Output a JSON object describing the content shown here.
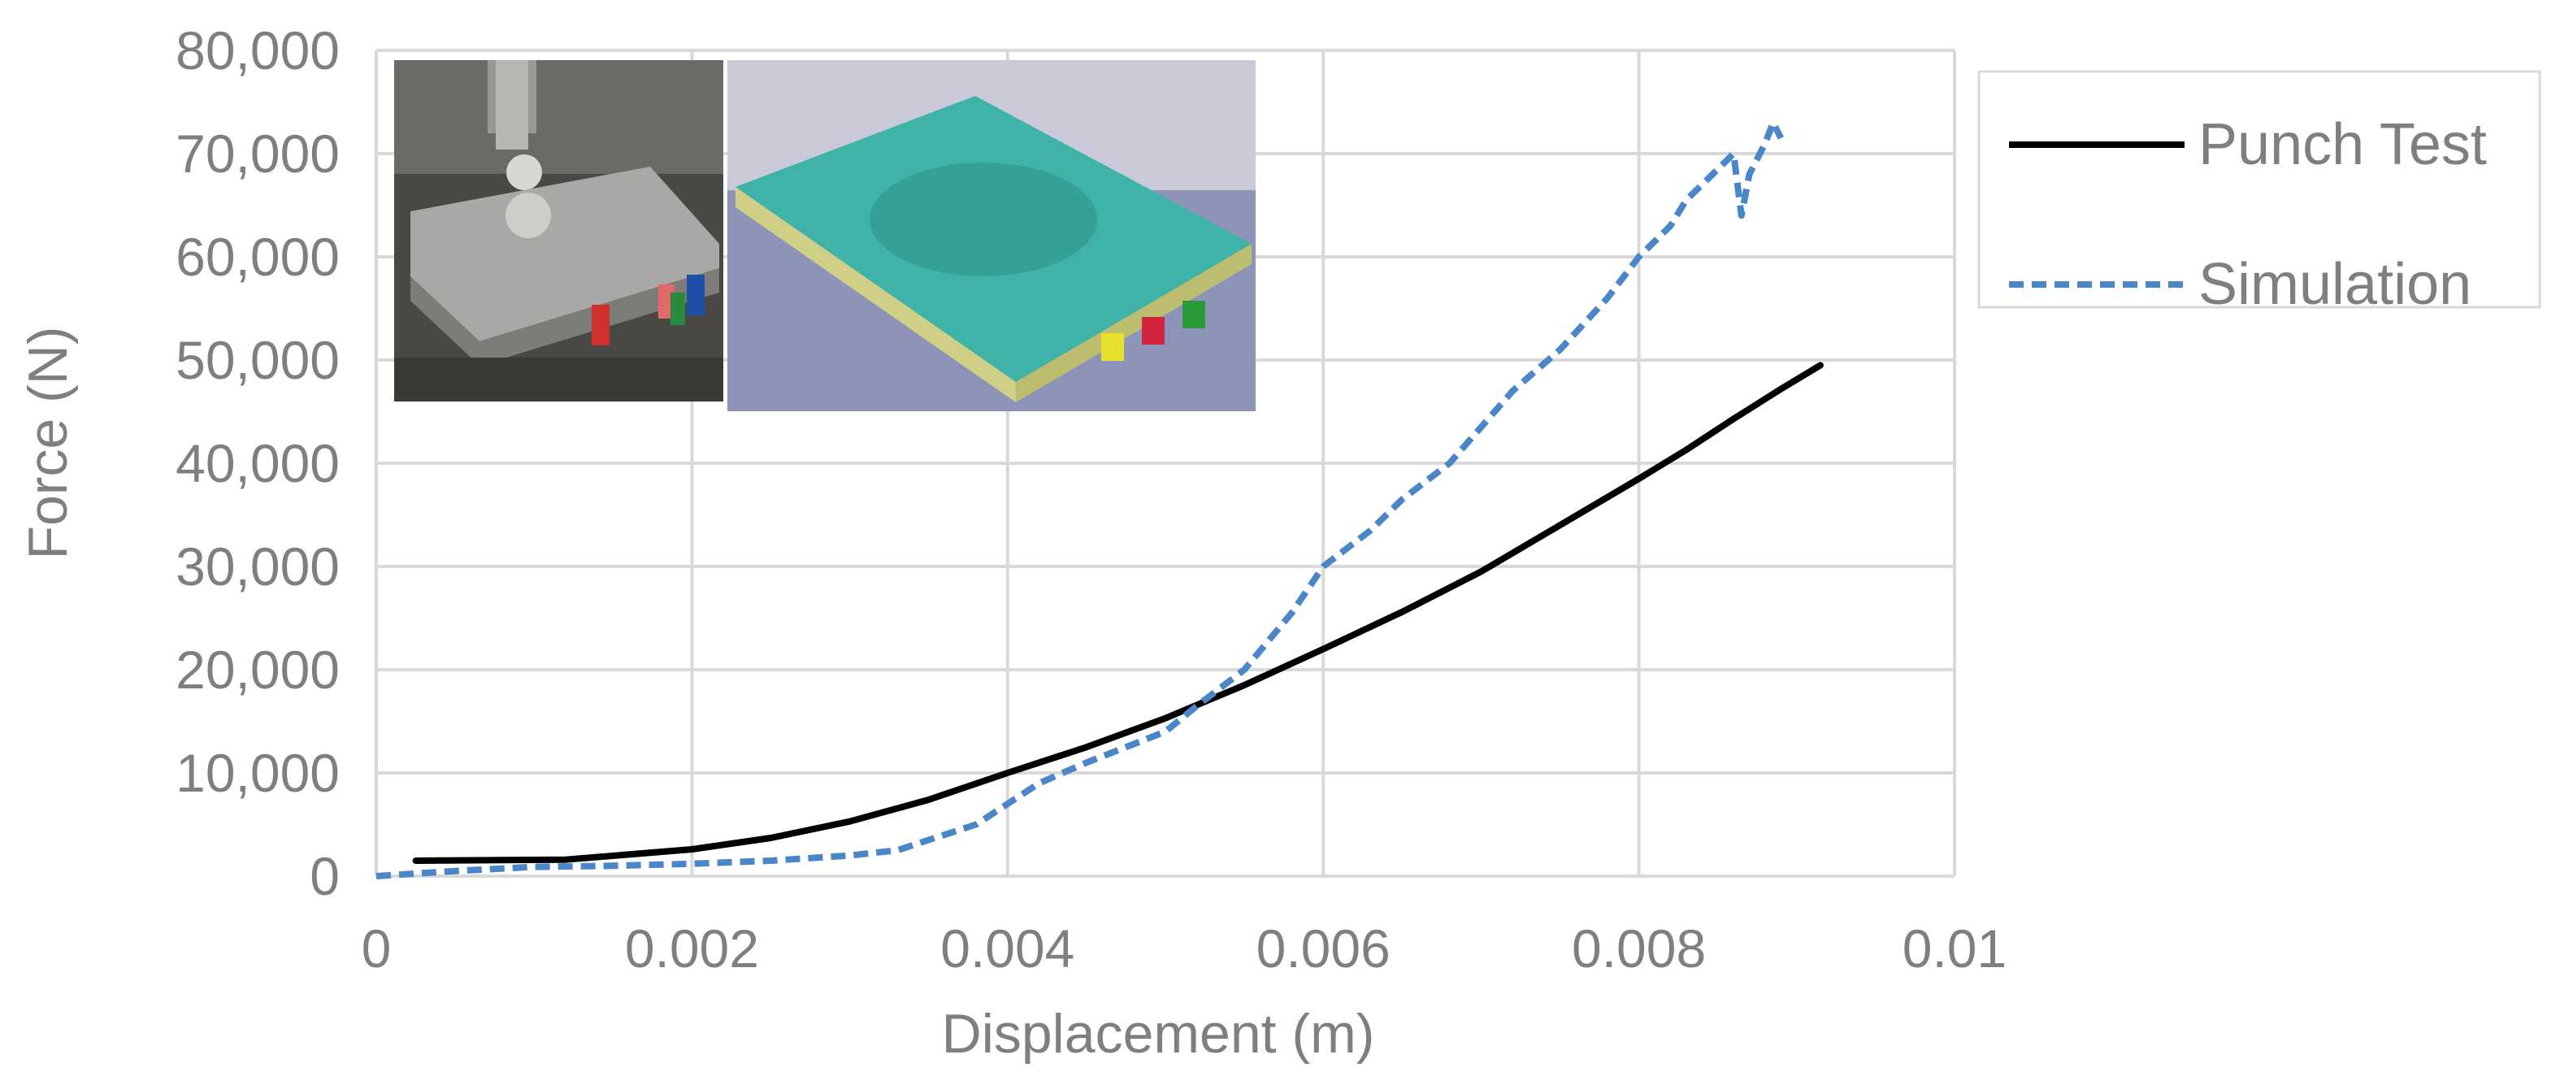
{
  "chart_data": {
    "type": "line",
    "title": "",
    "xlabel": "Displacement (m)",
    "ylabel": "Force (N)",
    "xlim": [
      0,
      0.01
    ],
    "ylim": [
      0,
      80000
    ],
    "x_ticks": [
      0,
      0.002,
      0.004,
      0.006,
      0.008,
      0.01
    ],
    "x_tick_labels": [
      "0",
      "0.002",
      "0.004",
      "0.006",
      "0.008",
      "0.01"
    ],
    "y_ticks": [
      0,
      10000,
      20000,
      30000,
      40000,
      50000,
      60000,
      70000,
      80000
    ],
    "y_tick_labels": [
      "0",
      "10,000",
      "20,000",
      "30,000",
      "40,000",
      "50,000",
      "60,000",
      "70,000",
      "80,000"
    ],
    "grid": true,
    "legend_position": "top-right, outside plot",
    "series": [
      {
        "name": "Punch Test",
        "color": "#000000",
        "dash": "solid",
        "x": [
          0.00025,
          0.0012,
          0.002,
          0.0025,
          0.003,
          0.0035,
          0.004,
          0.0045,
          0.005,
          0.0055,
          0.006,
          0.0065,
          0.007,
          0.0075,
          0.008,
          0.0083,
          0.0086,
          0.0089,
          0.00915
        ],
        "y": [
          1500,
          1600,
          2600,
          3700,
          5300,
          7400,
          10000,
          12500,
          15300,
          18500,
          22000,
          25600,
          29500,
          34000,
          38500,
          41300,
          44300,
          47200,
          49500
        ]
      },
      {
        "name": "Simulation",
        "color": "#4a86c8",
        "dash": "dashed",
        "x": [
          0,
          0.0005,
          0.001,
          0.0015,
          0.002,
          0.0025,
          0.003,
          0.0033,
          0.0035,
          0.0038,
          0.004,
          0.0042,
          0.0045,
          0.005,
          0.0052,
          0.0055,
          0.0058,
          0.006,
          0.0063,
          0.0065,
          0.0068,
          0.007,
          0.0072,
          0.0075,
          0.0078,
          0.008,
          0.0082,
          0.0083,
          0.0085,
          0.0086,
          0.00865,
          0.0087,
          0.0088,
          0.00885,
          0.0089
        ],
        "y": [
          0,
          500,
          900,
          1000,
          1200,
          1500,
          2000,
          2500,
          3500,
          5000,
          7000,
          9000,
          11000,
          14000,
          16500,
          20000,
          25500,
          30000,
          33500,
          36500,
          40000,
          43500,
          47000,
          51000,
          56000,
          60000,
          63000,
          65500,
          68500,
          70000,
          64000,
          68000,
          71000,
          73000,
          71500
        ]
      }
    ]
  },
  "inset_images": [
    "punch-test-photo",
    "cell-simulation-render"
  ]
}
